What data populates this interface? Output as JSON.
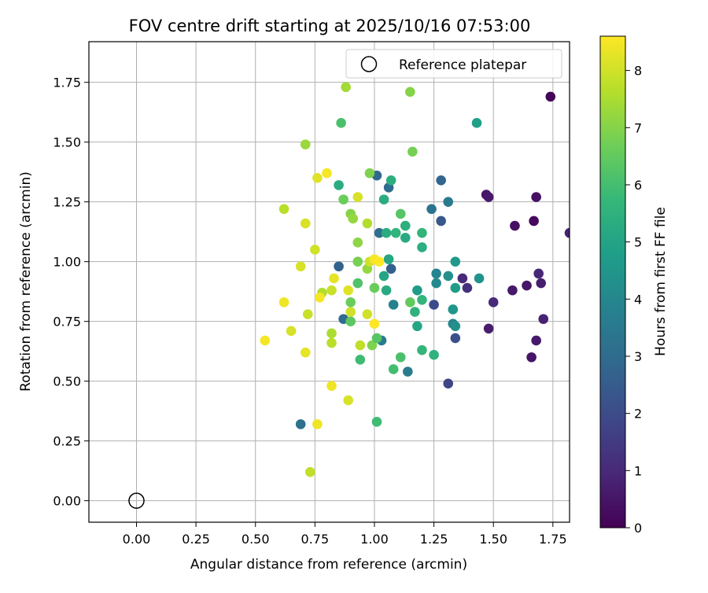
{
  "chart_data": {
    "type": "scatter",
    "title": "FOV centre drift starting at 2025/10/16 07:53:00",
    "xlabel": "Angular distance from reference (arcmin)",
    "ylabel": "Rotation from reference (arcmin)",
    "xlim": [
      -0.2,
      1.82
    ],
    "ylim": [
      -0.09,
      1.92
    ],
    "xticks": [
      0.0,
      0.25,
      0.5,
      0.75,
      1.0,
      1.25,
      1.5,
      1.75
    ],
    "xtick_labels": [
      "0.00",
      "0.25",
      "0.50",
      "0.75",
      "1.00",
      "1.25",
      "1.50",
      "1.75"
    ],
    "yticks": [
      0.0,
      0.25,
      0.5,
      0.75,
      1.0,
      1.25,
      1.5,
      1.75
    ],
    "ytick_labels": [
      "0.00",
      "0.25",
      "0.50",
      "0.75",
      "1.00",
      "1.25",
      "1.50",
      "1.75"
    ],
    "grid": true,
    "legend_position": "upper right",
    "legend_label": "Reference platepar",
    "reference_point": {
      "x": 0.0,
      "y": 0.0
    },
    "colorbar": {
      "label": "Hours from first FF file",
      "range": [
        0,
        8.6
      ],
      "ticks": [
        0,
        1,
        2,
        3,
        4,
        5,
        6,
        7,
        8
      ],
      "tick_labels": [
        "0",
        "1",
        "2",
        "3",
        "4",
        "5",
        "6",
        "7",
        "8"
      ],
      "colormap": "viridis",
      "colors": [
        "#440154",
        "#482878",
        "#3e4989",
        "#31688e",
        "#26828e",
        "#1f9e89",
        "#35b779",
        "#6ece58",
        "#b5de2b",
        "#fde725"
      ]
    },
    "points": [
      {
        "x": 1.74,
        "y": 1.69,
        "h": 0.1
      },
      {
        "x": 1.47,
        "y": 1.28,
        "h": 0.5
      },
      {
        "x": 1.48,
        "y": 1.27,
        "h": 0.6
      },
      {
        "x": 1.68,
        "y": 1.27,
        "h": 0.4
      },
      {
        "x": 1.59,
        "y": 1.15,
        "h": 0.4
      },
      {
        "x": 1.67,
        "y": 1.17,
        "h": 0.2
      },
      {
        "x": 1.82,
        "y": 1.12,
        "h": 0.8
      },
      {
        "x": 1.69,
        "y": 0.95,
        "h": 0.9
      },
      {
        "x": 1.7,
        "y": 0.91,
        "h": 0.7
      },
      {
        "x": 1.64,
        "y": 0.9,
        "h": 0.5
      },
      {
        "x": 1.58,
        "y": 0.88,
        "h": 0.6
      },
      {
        "x": 1.5,
        "y": 0.83,
        "h": 1.0
      },
      {
        "x": 1.71,
        "y": 0.76,
        "h": 0.8
      },
      {
        "x": 1.48,
        "y": 0.72,
        "h": 0.7
      },
      {
        "x": 1.68,
        "y": 0.67,
        "h": 0.6
      },
      {
        "x": 1.66,
        "y": 0.6,
        "h": 0.5
      },
      {
        "x": 1.37,
        "y": 0.93,
        "h": 1.0
      },
      {
        "x": 1.39,
        "y": 0.89,
        "h": 1.2
      },
      {
        "x": 1.31,
        "y": 0.49,
        "h": 1.8
      },
      {
        "x": 1.34,
        "y": 0.68,
        "h": 2.1
      },
      {
        "x": 1.25,
        "y": 0.82,
        "h": 2.0
      },
      {
        "x": 1.28,
        "y": 1.17,
        "h": 2.4
      },
      {
        "x": 1.28,
        "y": 1.34,
        "h": 2.8
      },
      {
        "x": 1.31,
        "y": 1.25,
        "h": 3.5
      },
      {
        "x": 1.24,
        "y": 1.22,
        "h": 3.3
      },
      {
        "x": 1.06,
        "y": 1.31,
        "h": 3.0
      },
      {
        "x": 1.01,
        "y": 1.36,
        "h": 2.9
      },
      {
        "x": 1.07,
        "y": 0.97,
        "h": 2.6
      },
      {
        "x": 1.02,
        "y": 1.12,
        "h": 3.1
      },
      {
        "x": 0.85,
        "y": 0.98,
        "h": 2.7
      },
      {
        "x": 0.87,
        "y": 0.76,
        "h": 3.0
      },
      {
        "x": 0.69,
        "y": 0.32,
        "h": 3.2
      },
      {
        "x": 1.03,
        "y": 0.67,
        "h": 3.6
      },
      {
        "x": 1.08,
        "y": 0.82,
        "h": 3.8
      },
      {
        "x": 1.14,
        "y": 0.54,
        "h": 3.6
      },
      {
        "x": 1.26,
        "y": 0.95,
        "h": 3.9
      },
      {
        "x": 1.26,
        "y": 0.91,
        "h": 4.1
      },
      {
        "x": 1.31,
        "y": 0.94,
        "h": 4.3
      },
      {
        "x": 1.33,
        "y": 0.74,
        "h": 3.9
      },
      {
        "x": 1.34,
        "y": 0.73,
        "h": 4.3
      },
      {
        "x": 1.34,
        "y": 1.0,
        "h": 4.6
      },
      {
        "x": 1.34,
        "y": 0.89,
        "h": 4.7
      },
      {
        "x": 1.33,
        "y": 0.8,
        "h": 4.5
      },
      {
        "x": 1.44,
        "y": 0.93,
        "h": 4.4
      },
      {
        "x": 1.43,
        "y": 1.58,
        "h": 4.8
      },
      {
        "x": 1.18,
        "y": 0.88,
        "h": 4.7
      },
      {
        "x": 1.18,
        "y": 0.73,
        "h": 5.1
      },
      {
        "x": 1.06,
        "y": 1.01,
        "h": 5.1
      },
      {
        "x": 1.04,
        "y": 0.94,
        "h": 5.0
      },
      {
        "x": 1.05,
        "y": 0.88,
        "h": 5.2
      },
      {
        "x": 1.04,
        "y": 1.26,
        "h": 5.3
      },
      {
        "x": 1.07,
        "y": 1.34,
        "h": 5.4
      },
      {
        "x": 1.05,
        "y": 1.12,
        "h": 5.3
      },
      {
        "x": 1.09,
        "y": 1.12,
        "h": 5.6
      },
      {
        "x": 1.13,
        "y": 1.1,
        "h": 5.2
      },
      {
        "x": 1.13,
        "y": 1.15,
        "h": 5.4
      },
      {
        "x": 1.2,
        "y": 1.12,
        "h": 5.6
      },
      {
        "x": 1.2,
        "y": 1.06,
        "h": 5.4
      },
      {
        "x": 1.2,
        "y": 0.84,
        "h": 5.6
      },
      {
        "x": 1.17,
        "y": 0.79,
        "h": 5.5
      },
      {
        "x": 1.25,
        "y": 0.61,
        "h": 5.5
      },
      {
        "x": 1.2,
        "y": 0.63,
        "h": 5.7
      },
      {
        "x": 0.85,
        "y": 1.32,
        "h": 5.3
      },
      {
        "x": 0.86,
        "y": 1.58,
        "h": 6.1
      },
      {
        "x": 0.87,
        "y": 1.26,
        "h": 6.6
      },
      {
        "x": 0.94,
        "y": 0.59,
        "h": 5.9
      },
      {
        "x": 1.01,
        "y": 0.33,
        "h": 5.9
      },
      {
        "x": 1.08,
        "y": 0.55,
        "h": 6.0
      },
      {
        "x": 1.11,
        "y": 0.6,
        "h": 6.1
      },
      {
        "x": 1.15,
        "y": 0.83,
        "h": 6.5
      },
      {
        "x": 1.11,
        "y": 1.2,
        "h": 6.3
      },
      {
        "x": 1.16,
        "y": 1.46,
        "h": 6.8
      },
      {
        "x": 1.15,
        "y": 1.71,
        "h": 7.0
      },
      {
        "x": 1.0,
        "y": 0.89,
        "h": 6.6
      },
      {
        "x": 0.98,
        "y": 1.37,
        "h": 6.9
      },
      {
        "x": 0.93,
        "y": 1.0,
        "h": 6.8
      },
      {
        "x": 0.93,
        "y": 0.91,
        "h": 6.2
      },
      {
        "x": 0.9,
        "y": 0.83,
        "h": 6.6
      },
      {
        "x": 0.9,
        "y": 0.75,
        "h": 6.4
      },
      {
        "x": 0.99,
        "y": 0.65,
        "h": 6.9
      },
      {
        "x": 1.01,
        "y": 0.68,
        "h": 6.3
      },
      {
        "x": 0.93,
        "y": 1.08,
        "h": 7.1
      },
      {
        "x": 0.9,
        "y": 1.2,
        "h": 7.0
      },
      {
        "x": 0.91,
        "y": 1.18,
        "h": 7.2
      },
      {
        "x": 0.88,
        "y": 1.73,
        "h": 7.4
      },
      {
        "x": 0.71,
        "y": 1.49,
        "h": 7.3
      },
      {
        "x": 0.82,
        "y": 0.7,
        "h": 7.5
      },
      {
        "x": 0.82,
        "y": 0.66,
        "h": 7.7
      },
      {
        "x": 0.78,
        "y": 0.87,
        "h": 7.6
      },
      {
        "x": 0.82,
        "y": 0.88,
        "h": 7.9
      },
      {
        "x": 0.97,
        "y": 0.97,
        "h": 7.2
      },
      {
        "x": 0.97,
        "y": 1.16,
        "h": 7.6
      },
      {
        "x": 0.98,
        "y": 1.0,
        "h": 8.0
      },
      {
        "x": 0.94,
        "y": 0.65,
        "h": 7.8
      },
      {
        "x": 0.97,
        "y": 0.78,
        "h": 8.0
      },
      {
        "x": 0.9,
        "y": 0.79,
        "h": 8.0
      },
      {
        "x": 0.89,
        "y": 0.88,
        "h": 8.2
      },
      {
        "x": 0.83,
        "y": 0.93,
        "h": 8.3
      },
      {
        "x": 0.93,
        "y": 1.27,
        "h": 8.1
      },
      {
        "x": 0.62,
        "y": 1.22,
        "h": 7.7
      },
      {
        "x": 0.71,
        "y": 1.16,
        "h": 8.1
      },
      {
        "x": 0.75,
        "y": 1.05,
        "h": 8.0
      },
      {
        "x": 0.69,
        "y": 0.98,
        "h": 8.1
      },
      {
        "x": 0.62,
        "y": 0.83,
        "h": 8.4
      },
      {
        "x": 0.72,
        "y": 0.78,
        "h": 7.9
      },
      {
        "x": 0.65,
        "y": 0.71,
        "h": 8.1
      },
      {
        "x": 0.54,
        "y": 0.67,
        "h": 8.5
      },
      {
        "x": 0.71,
        "y": 0.62,
        "h": 8.3
      },
      {
        "x": 0.82,
        "y": 0.48,
        "h": 8.4
      },
      {
        "x": 0.89,
        "y": 0.42,
        "h": 8.1
      },
      {
        "x": 0.76,
        "y": 0.32,
        "h": 8.4
      },
      {
        "x": 0.73,
        "y": 0.12,
        "h": 7.8
      },
      {
        "x": 0.76,
        "y": 1.35,
        "h": 8.2
      },
      {
        "x": 0.8,
        "y": 1.37,
        "h": 8.5
      },
      {
        "x": 1.0,
        "y": 1.01,
        "h": 8.5
      },
      {
        "x": 1.02,
        "y": 1.0,
        "h": 8.6
      },
      {
        "x": 0.77,
        "y": 0.85,
        "h": 8.5
      },
      {
        "x": 1.0,
        "y": 0.74,
        "h": 8.6
      }
    ]
  }
}
